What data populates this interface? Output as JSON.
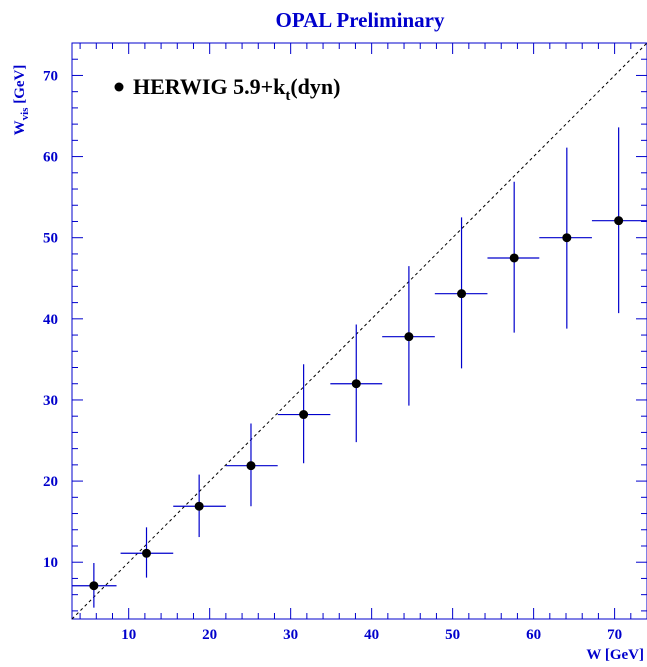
{
  "chart_data": {
    "type": "scatter",
    "title": "OPAL Preliminary",
    "xlabel": "W [GeV]",
    "ylabel_main": "W",
    "ylabel_sub": "vis",
    "ylabel_unit": " [GeV]",
    "xlim": [
      3,
      74
    ],
    "ylim": [
      3,
      74
    ],
    "x_ticks": [
      10,
      20,
      30,
      40,
      50,
      60,
      70
    ],
    "y_ticks": [
      10,
      20,
      30,
      40,
      50,
      60,
      70
    ],
    "grid": false,
    "legend": {
      "position": "top-left",
      "label_main": "HERWIG 5.9+k",
      "label_sub": "t",
      "label_tail": "(dyn)"
    },
    "reference_line": {
      "style": "dashed",
      "from": [
        3,
        3
      ],
      "to": [
        74,
        74
      ]
    },
    "series": [
      {
        "name": "HERWIG 5.9+kt(dyn)",
        "points": [
          {
            "x": 5.7,
            "y": 7.1,
            "xlo": 3.0,
            "xhi": 8.5,
            "ylo": 4.4,
            "yhi": 9.9
          },
          {
            "x": 12.2,
            "y": 11.1,
            "xlo": 9.0,
            "xhi": 15.5,
            "ylo": 8.1,
            "yhi": 14.3
          },
          {
            "x": 18.7,
            "y": 16.9,
            "xlo": 15.5,
            "xhi": 22.0,
            "ylo": 13.1,
            "yhi": 20.8
          },
          {
            "x": 25.1,
            "y": 21.9,
            "xlo": 22.0,
            "xhi": 28.4,
            "ylo": 16.9,
            "yhi": 27.1
          },
          {
            "x": 31.6,
            "y": 28.2,
            "xlo": 28.4,
            "xhi": 34.9,
            "ylo": 22.2,
            "yhi": 34.4
          },
          {
            "x": 38.1,
            "y": 32.0,
            "xlo": 34.9,
            "xhi": 41.3,
            "ylo": 24.8,
            "yhi": 39.3
          },
          {
            "x": 44.6,
            "y": 37.8,
            "xlo": 41.3,
            "xhi": 47.8,
            "ylo": 29.3,
            "yhi": 46.5
          },
          {
            "x": 51.1,
            "y": 43.1,
            "xlo": 47.8,
            "xhi": 54.3,
            "ylo": 33.9,
            "yhi": 52.5
          },
          {
            "x": 57.6,
            "y": 47.5,
            "xlo": 54.3,
            "xhi": 60.7,
            "ylo": 38.3,
            "yhi": 56.9
          },
          {
            "x": 64.1,
            "y": 50.0,
            "xlo": 60.7,
            "xhi": 67.2,
            "ylo": 38.8,
            "yhi": 61.1
          },
          {
            "x": 70.5,
            "y": 52.1,
            "xlo": 67.2,
            "xhi": 74.0,
            "ylo": 40.7,
            "yhi": 63.6
          }
        ]
      }
    ],
    "colors": {
      "axes": "#0000cc",
      "text": "#0000cc",
      "markers": "#000000",
      "errorbars": "#0000cc",
      "legend_text": "#000000"
    }
  }
}
